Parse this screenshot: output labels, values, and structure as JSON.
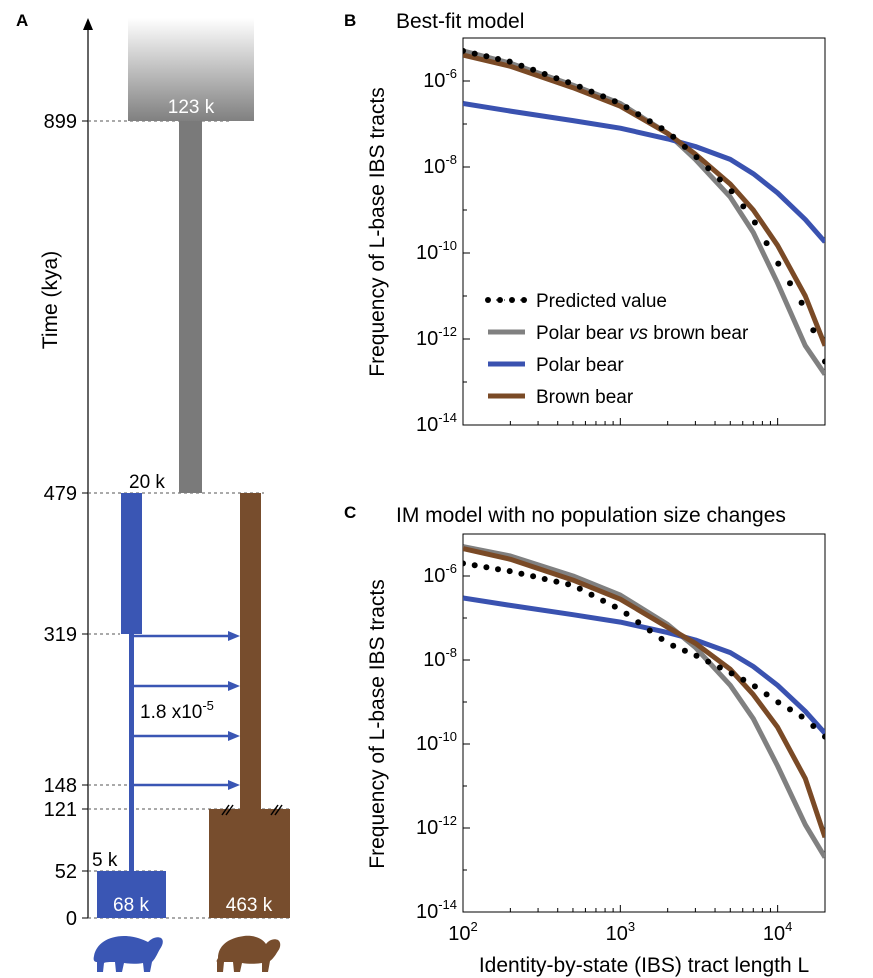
{
  "panels": {
    "A": {
      "letter": "A",
      "ylabel": "Time (kya)",
      "time_ticks": [
        "899",
        "479",
        "319",
        "148",
        "121",
        "52",
        "0"
      ],
      "blocks": {
        "ancestral": "123 k",
        "split": "20 k",
        "polar_recent_top": "5 k",
        "polar_recent": "68 k",
        "brown_recent": "463 k"
      },
      "migration": {
        "base": "1.8 x10",
        "exp": "-5"
      },
      "colors": {
        "ancestral": "#7a7a7a",
        "polar": "#3a56b4",
        "brown": "#774d2d"
      },
      "icons": [
        "polar-bear-icon",
        "brown-bear-icon"
      ]
    },
    "B": {
      "letter": "B",
      "title": "Best-fit model",
      "ylabel": "Frequency of L-base IBS tracts",
      "legend": [
        "Predicted value",
        "Polar bear",
        "Polar bear",
        "Brown bear"
      ],
      "legend_vs": "vs",
      "legend_gray_tail": "brown bear"
    },
    "C": {
      "letter": "C",
      "title": "IM model with no population size changes",
      "ylabel": "Frequency of L-base IBS tracts",
      "xlabel": "Identity-by-state (IBS) tract length L"
    },
    "y_tick_labels": [
      {
        "base": "10",
        "exp": "-6"
      },
      {
        "base": "10",
        "exp": "-8"
      },
      {
        "base": "10",
        "exp": "-10"
      },
      {
        "base": "10",
        "exp": "-12"
      },
      {
        "base": "10",
        "exp": "-14"
      }
    ],
    "x_tick_labels": [
      {
        "base": "10",
        "exp": "2"
      },
      {
        "base": "10",
        "exp": "3"
      },
      {
        "base": "10",
        "exp": "4"
      }
    ]
  },
  "chart_data": [
    {
      "type": "line",
      "panel": "B",
      "title": "Best-fit model",
      "xlabel": "",
      "ylabel": "Frequency of L-base IBS tracts",
      "xscale": "log",
      "yscale": "log",
      "xlim": [
        100,
        20000
      ],
      "ylim": [
        1e-14,
        1e-05
      ],
      "x": [
        100,
        200,
        500,
        1000,
        2000,
        3000,
        5000,
        7000,
        10000,
        15000,
        20000
      ],
      "series": [
        {
          "name": "Polar bear vs brown bear",
          "color": "#808080",
          "values": [
            5e-06,
            2.6e-06,
            8e-07,
            3e-07,
            6e-08,
            1.5e-08,
            2e-09,
            3e-10,
            2e-11,
            7e-13,
            1.5e-13
          ]
        },
        {
          "name": "Polar bear",
          "color": "#3a52b0",
          "values": [
            3e-07,
            2e-07,
            1.2e-07,
            8e-08,
            4.5e-08,
            3e-08,
            1.5e-08,
            7e-09,
            2.5e-09,
            6e-10,
            1.8e-10
          ]
        },
        {
          "name": "Brown bear",
          "color": "#7a4a26",
          "values": [
            4e-06,
            2.2e-06,
            7e-07,
            2.6e-07,
            6e-08,
            2e-08,
            4e-09,
            1e-09,
            1.5e-10,
            1e-11,
            7e-13
          ]
        },
        {
          "name": "Predicted value",
          "style": "dotted",
          "color": "#000000",
          "values": [
            5e-06,
            2.8e-06,
            8.5e-07,
            3e-07,
            6.5e-08,
            1.8e-08,
            3e-09,
            6e-10,
            6e-11,
            5e-12,
            3e-13
          ]
        }
      ],
      "legend": [
        "Predicted value",
        "Polar bear vs brown bear",
        "Polar bear",
        "Brown bear"
      ],
      "legend_position": "lower-left",
      "grid": false
    },
    {
      "type": "line",
      "panel": "C",
      "title": "IM model with no population size changes",
      "xlabel": "Identity-by-state (IBS) tract length L",
      "ylabel": "Frequency of L-base IBS tracts",
      "xscale": "log",
      "yscale": "log",
      "xlim": [
        100,
        20000
      ],
      "ylim": [
        1e-14,
        1e-05
      ],
      "x": [
        100,
        200,
        500,
        1000,
        2000,
        3000,
        5000,
        7000,
        10000,
        15000,
        20000
      ],
      "series": [
        {
          "name": "Polar bear vs brown bear",
          "color": "#808080",
          "values": [
            5e-06,
            3e-06,
            1e-06,
            3.5e-07,
            7e-08,
            2e-08,
            2.5e-09,
            4e-10,
            3e-11,
            1.2e-12,
            2e-13
          ]
        },
        {
          "name": "Polar bear",
          "color": "#3a52b0",
          "values": [
            3e-07,
            2e-07,
            1.2e-07,
            8e-08,
            4.5e-08,
            3e-08,
            1.5e-08,
            7e-09,
            2.5e-09,
            6e-10,
            1.8e-10
          ]
        },
        {
          "name": "Brown bear",
          "color": "#7a4a26",
          "values": [
            4.5e-06,
            2.5e-06,
            8e-07,
            2.8e-07,
            6e-08,
            2.5e-08,
            6e-09,
            1.5e-09,
            2.5e-10,
            1.5e-11,
            6e-13
          ]
        },
        {
          "name": "Predicted value",
          "style": "dotted",
          "color": "#000000",
          "values": [
            2e-06,
            1.3e-06,
            6e-07,
            1.6e-07,
            2.5e-08,
            1.3e-08,
            5e-09,
            2.5e-09,
            1e-09,
            4e-10,
            1.5e-10
          ]
        }
      ],
      "grid": false
    }
  ]
}
